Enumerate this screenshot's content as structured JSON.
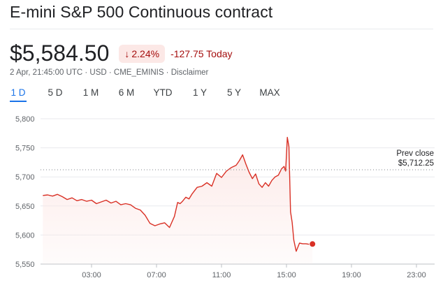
{
  "title": "E-mini S&P 500 Continuous contract",
  "price": "$5,584.50",
  "change_badge": {
    "arrow": "↓",
    "percent": "2.24%"
  },
  "change_text": "-127.75 Today",
  "meta": "2 Apr, 21:45:00 UTC · USD · CME_EMINIS · Disclaimer",
  "tabs": [
    {
      "label": "1 D",
      "active": true
    },
    {
      "label": "5 D",
      "active": false
    },
    {
      "label": "1 M",
      "active": false
    },
    {
      "label": "6 M",
      "active": false
    },
    {
      "label": "YTD",
      "active": false
    },
    {
      "label": "1 Y",
      "active": false
    },
    {
      "label": "5 Y",
      "active": false
    },
    {
      "label": "MAX",
      "active": false
    }
  ],
  "colors": {
    "line": "#d93025",
    "fill": "#fce8e6",
    "accent": "#1a73e8"
  },
  "chart_data": {
    "type": "area",
    "y_ticks": [
      "5,800",
      "5,750",
      "5,700",
      "5,650",
      "5,600",
      "5,550"
    ],
    "x_ticks": [
      "03:00",
      "07:00",
      "11:00",
      "15:00",
      "19:00",
      "23:00"
    ],
    "ylim": [
      5550,
      5800
    ],
    "prev_close": {
      "label": "Prev close",
      "value_label": "$5,712.25",
      "value": 5712.25
    },
    "series": [
      {
        "x": [
          0.0,
          0.3,
          0.6,
          0.9,
          1.2,
          1.5,
          1.8,
          2.1,
          2.4,
          2.7,
          3.0,
          3.3,
          3.6,
          3.9,
          4.2,
          4.5,
          4.8,
          5.1,
          5.4,
          5.7,
          6.0,
          6.3,
          6.6,
          6.9,
          7.2,
          7.5,
          7.8,
          8.1,
          8.3,
          8.45,
          8.6,
          8.8,
          9.0,
          9.2,
          9.5,
          9.8,
          10.1,
          10.4,
          10.7,
          11.0,
          11.3,
          11.6,
          11.9,
          12.1,
          12.3,
          12.5,
          12.7,
          12.9,
          13.1,
          13.3,
          13.5,
          13.7,
          13.9,
          14.1,
          14.3,
          14.5,
          14.7,
          14.85,
          14.95,
          15.05,
          15.15,
          15.25,
          15.35,
          15.45,
          15.6,
          15.8,
          16.0,
          16.2,
          16.4,
          16.6
        ],
        "y": [
          5668,
          5669,
          5667,
          5670,
          5666,
          5661,
          5664,
          5659,
          5661,
          5658,
          5660,
          5654,
          5657,
          5660,
          5655,
          5658,
          5652,
          5654,
          5652,
          5646,
          5643,
          5634,
          5620,
          5616,
          5619,
          5621,
          5613,
          5632,
          5656,
          5654,
          5658,
          5665,
          5662,
          5671,
          5682,
          5684,
          5690,
          5684,
          5706,
          5699,
          5710,
          5716,
          5720,
          5728,
          5738,
          5722,
          5708,
          5697,
          5705,
          5688,
          5682,
          5690,
          5684,
          5694,
          5700,
          5703,
          5714,
          5718,
          5710,
          5768,
          5752,
          5640,
          5622,
          5591,
          5572,
          5586,
          5585,
          5585,
          5584,
          5584.5
        ]
      }
    ]
  }
}
